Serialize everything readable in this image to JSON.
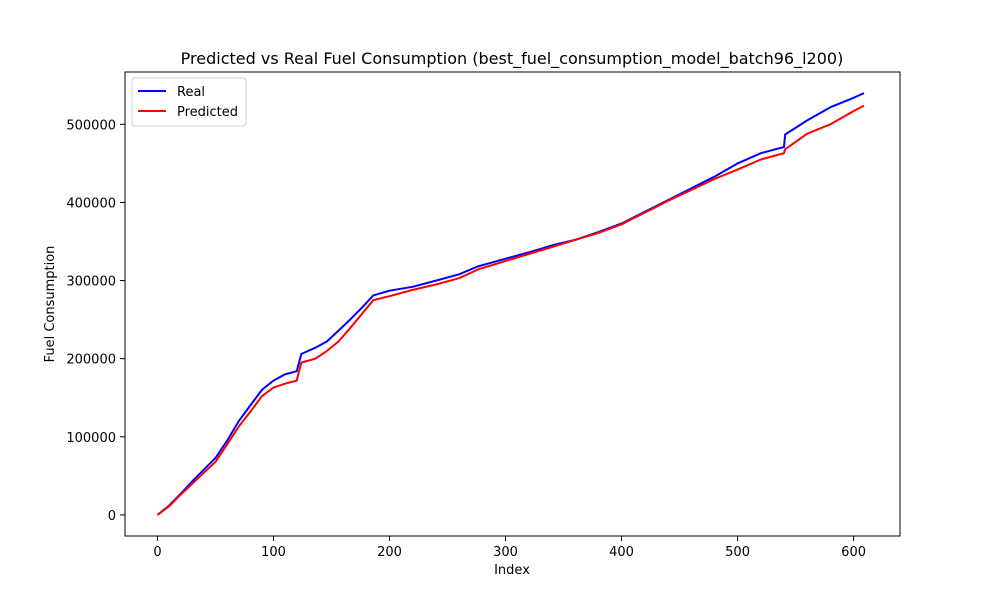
{
  "chart_data": {
    "type": "line",
    "title": "Predicted vs Real Fuel Consumption (best_fuel_consumption_model_batch96_l200)",
    "xlabel": "Index",
    "ylabel": "Fuel Consumption",
    "xlim": [
      -28,
      640
    ],
    "ylim": [
      -27000,
      567000
    ],
    "xticks": [
      0,
      100,
      200,
      300,
      400,
      500,
      600
    ],
    "xtick_labels": [
      "0",
      "100",
      "200",
      "300",
      "400",
      "500",
      "600"
    ],
    "yticks": [
      0,
      100000,
      200000,
      300000,
      400000,
      500000
    ],
    "ytick_labels": [
      "0",
      "100000",
      "200000",
      "300000",
      "400000",
      "500000"
    ],
    "grid": false,
    "legend_position": "top-left",
    "series": [
      {
        "name": "Real",
        "color": "#0000ff",
        "x": [
          0,
          10,
          20,
          30,
          40,
          50,
          60,
          70,
          80,
          90,
          100,
          110,
          120,
          124,
          136,
          146,
          156,
          166,
          176,
          186,
          200,
          220,
          240,
          260,
          276,
          300,
          320,
          340,
          360,
          380,
          400,
          420,
          440,
          460,
          480,
          500,
          520,
          540,
          541,
          560,
          580,
          600,
          609
        ],
        "y": [
          0,
          12000,
          27000,
          43000,
          58000,
          73000,
          95000,
          120000,
          140000,
          160000,
          172000,
          180000,
          184000,
          206000,
          214000,
          222000,
          236000,
          250000,
          265000,
          281000,
          287000,
          292000,
          300000,
          308000,
          318000,
          328000,
          336000,
          345000,
          352000,
          362000,
          373000,
          388000,
          403000,
          418000,
          433000,
          450000,
          463000,
          471000,
          487000,
          505000,
          522000,
          534000,
          540000
        ]
      },
      {
        "name": "Predicted",
        "color": "#ff0000",
        "x": [
          0,
          10,
          20,
          30,
          40,
          50,
          60,
          70,
          80,
          90,
          100,
          110,
          120,
          124,
          136,
          146,
          156,
          166,
          176,
          186,
          200,
          220,
          240,
          260,
          276,
          300,
          320,
          340,
          360,
          380,
          400,
          420,
          440,
          460,
          480,
          500,
          520,
          540,
          541,
          560,
          580,
          600,
          609
        ],
        "y": [
          0,
          11000,
          26000,
          40000,
          54000,
          68000,
          90000,
          113000,
          132000,
          152000,
          163000,
          168000,
          172000,
          195000,
          200000,
          210000,
          222000,
          239000,
          257000,
          275000,
          280000,
          288000,
          295000,
          303000,
          314000,
          325000,
          334000,
          343000,
          352000,
          361000,
          372000,
          387000,
          402000,
          416000,
          430000,
          442000,
          455000,
          463000,
          468000,
          488000,
          500000,
          517000,
          524000
        ]
      }
    ]
  }
}
